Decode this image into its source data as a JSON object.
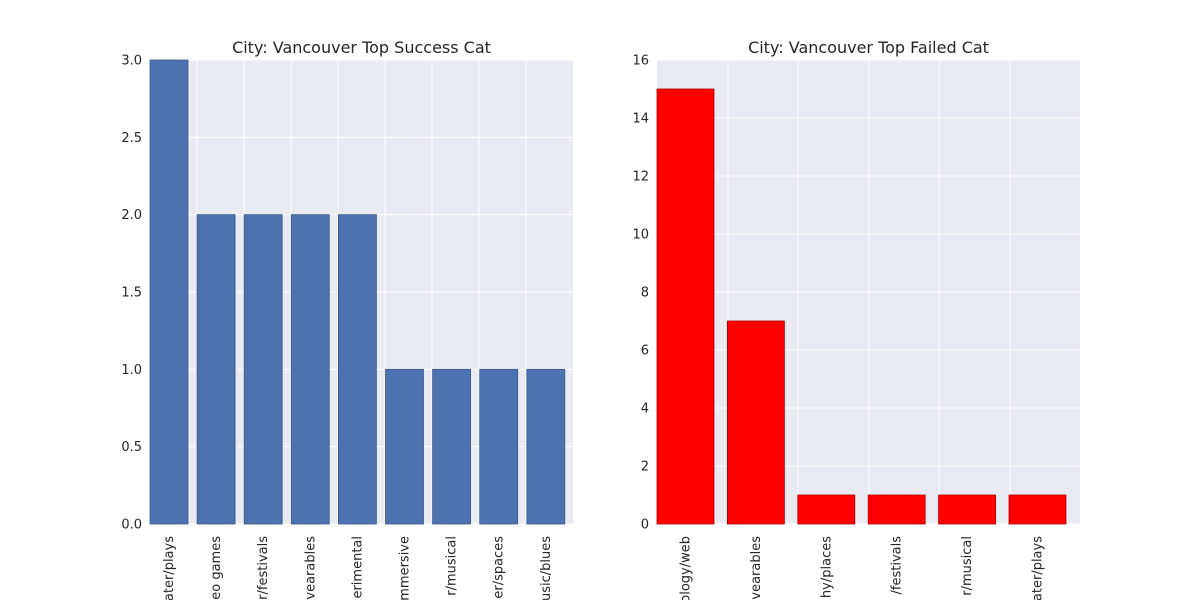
{
  "chart_data": [
    {
      "type": "bar",
      "title": "City: Vancouver Top Success Cat",
      "xlabel": "",
      "ylabel": "",
      "categories": [
        "Theater/plays",
        "Video games",
        "Film & Video/festivals",
        "Technology/wearables",
        "Film & Video/experimental",
        "Theater/immersive",
        "Theater/musical",
        "Theater/spaces",
        "Music/blues"
      ],
      "category_labels_visible": [
        "ater/plays",
        "eo games",
        "r/festivals",
        "vearables",
        "erimental",
        "mmersive",
        "r/musical",
        "er/spaces",
        "usic/blues"
      ],
      "values": [
        3,
        2,
        2,
        2,
        2,
        1,
        1,
        1,
        1
      ],
      "ylim": [
        0,
        3
      ],
      "yticks": [
        "0.0",
        "0.5",
        "1.0",
        "1.5",
        "2.0",
        "2.5",
        "3.0"
      ],
      "bar_color": "#4c72b0",
      "background_color": "#eaeaf2",
      "grid": true
    },
    {
      "type": "bar",
      "title": "City: Vancouver Top Failed Cat",
      "xlabel": "",
      "ylabel": "",
      "categories": [
        "Technology/web",
        "Technology/wearables",
        "Photography/places",
        "Film & Video/festivals",
        "Theater/musical",
        "Theater/plays"
      ],
      "category_labels_visible": [
        "ology/web",
        "vearables",
        "hy/places",
        "/festivals",
        "r/musical",
        "ater/plays"
      ],
      "values": [
        15,
        7,
        1,
        1,
        1,
        1
      ],
      "ylim": [
        0,
        16
      ],
      "yticks": [
        "0",
        "2",
        "4",
        "6",
        "8",
        "10",
        "12",
        "14",
        "16"
      ],
      "bar_color": "#ff0000",
      "background_color": "#eaeaf2",
      "grid": true
    }
  ]
}
